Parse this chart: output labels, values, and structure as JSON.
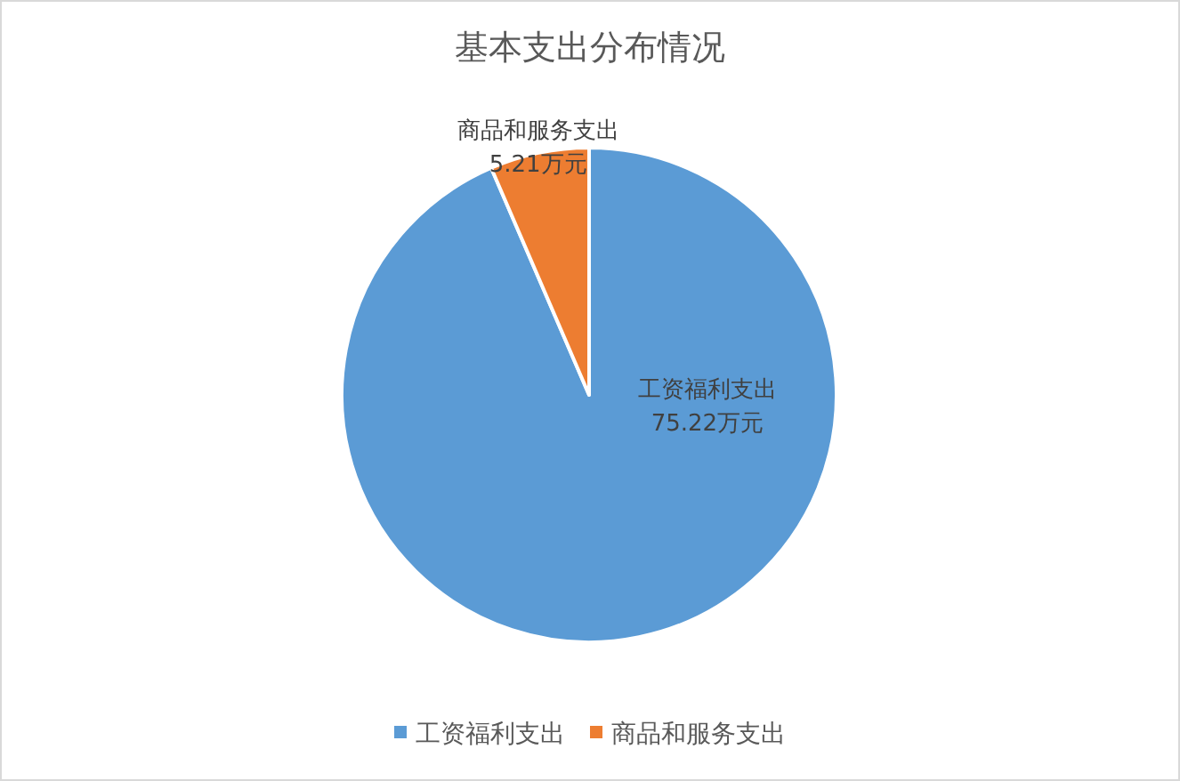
{
  "chart_data": {
    "type": "pie",
    "title": "基本支出分布情况",
    "categories": [
      "工资福利支出",
      "商品和服务支出"
    ],
    "values": [
      75.22,
      5.21
    ],
    "colors": [
      "#5b9bd5",
      "#ed7d31"
    ],
    "value_labels": [
      "75.22万元",
      "5.21万元"
    ],
    "legend": "bottom"
  }
}
